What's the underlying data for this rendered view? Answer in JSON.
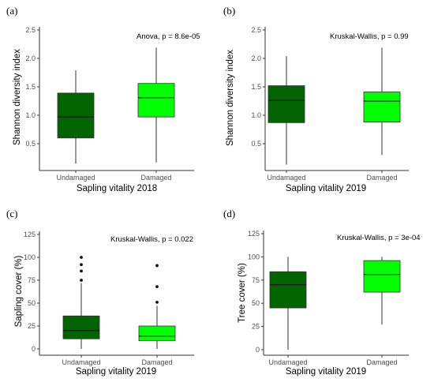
{
  "chart_data": [
    {
      "type": "box",
      "panel_label": "(a)",
      "annotation": "Anova, p = 8.6e-05",
      "xlabel": "Sapling vitality 2018",
      "ylabel": "Shannon diversity index",
      "categories": [
        "Undamaged",
        "Damaged"
      ],
      "ylim": [
        0.15,
        2.5
      ],
      "yticks": [
        0.5,
        1.0,
        1.5,
        2.0,
        2.5
      ],
      "ytick_labels": [
        "0.5",
        "1.0",
        "1.5",
        "2.0",
        "2.5"
      ],
      "boxes": [
        {
          "category": "Undamaged",
          "min": 0.15,
          "q1": 0.6,
          "median": 0.97,
          "q3": 1.39,
          "max": 1.79,
          "outliers": [],
          "color": "#006400"
        },
        {
          "category": "Damaged",
          "min": 0.17,
          "q1": 0.97,
          "median": 1.31,
          "q3": 1.56,
          "max": 2.19,
          "outliers": [],
          "color": "#00ff00"
        }
      ]
    },
    {
      "type": "box",
      "panel_label": "(b)",
      "annotation": "Kruskal-Wallis, p = 0.99",
      "xlabel": "Sapling vitality 2019",
      "ylabel": "Shannon diversity index",
      "categories": [
        "Undamaged",
        "Damaged"
      ],
      "ylim": [
        0.1,
        2.5
      ],
      "yticks": [
        0.5,
        1.0,
        1.5,
        2.0,
        2.5
      ],
      "ytick_labels": [
        "0.5",
        "1.0",
        "1.5",
        "2.0",
        "2.5"
      ],
      "boxes": [
        {
          "category": "Undamaged",
          "min": 0.13,
          "q1": 0.87,
          "median": 1.26,
          "q3": 1.52,
          "max": 2.04,
          "outliers": [],
          "color": "#006400"
        },
        {
          "category": "Damaged",
          "min": 0.3,
          "q1": 0.88,
          "median": 1.25,
          "q3": 1.41,
          "max": 2.19,
          "outliers": [],
          "color": "#00ff00"
        }
      ]
    },
    {
      "type": "box",
      "panel_label": "(c)",
      "annotation": "Kruskal-Wallis, p = 0.022",
      "xlabel": "Sapling vitality 2019",
      "ylabel": "Sapling cover (%)",
      "categories": [
        "Undamaged",
        "Damaged"
      ],
      "ylim": [
        0,
        125
      ],
      "yticks": [
        0,
        25,
        50,
        75,
        100,
        125
      ],
      "ytick_labels": [
        "0",
        "25",
        "50",
        "75",
        "100",
        "125"
      ],
      "boxes": [
        {
          "category": "Undamaged",
          "min": 0,
          "q1": 11,
          "median": 20,
          "q3": 36,
          "max": 72,
          "outliers": [
            75,
            85,
            92,
            100
          ],
          "color": "#006400"
        },
        {
          "category": "Damaged",
          "min": 0,
          "q1": 9,
          "median": 14,
          "q3": 25,
          "max": 47,
          "outliers": [
            51,
            68,
            91
          ],
          "color": "#00ff00"
        }
      ]
    },
    {
      "type": "box",
      "panel_label": "(d)",
      "annotation": "Kruskal-Wallis, p = 3e-04",
      "xlabel": "Sapling vitality 2019",
      "ylabel": "Tree cover (%)",
      "categories": [
        "Undamaged",
        "Damaged"
      ],
      "ylim": [
        0,
        125
      ],
      "yticks": [
        0,
        25,
        50,
        75,
        100,
        125
      ],
      "ytick_labels": [
        "0",
        "25",
        "50",
        "75",
        "100",
        "125"
      ],
      "boxes": [
        {
          "category": "Undamaged",
          "min": 0,
          "q1": 45,
          "median": 70,
          "q3": 84,
          "max": 100,
          "outliers": [],
          "color": "#006400"
        },
        {
          "category": "Damaged",
          "min": 27,
          "q1": 62,
          "median": 81,
          "q3": 96,
          "max": 100,
          "outliers": [],
          "color": "#00ff00"
        }
      ]
    }
  ]
}
